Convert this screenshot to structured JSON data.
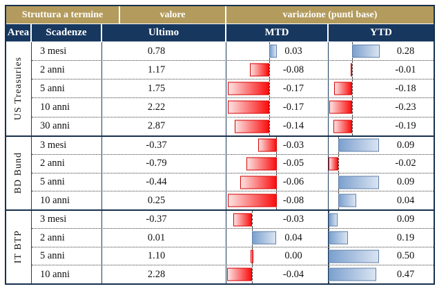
{
  "header": {
    "group_row": [
      "Struttura a termine",
      "valore",
      "variazione (punti base)"
    ],
    "columns": [
      "Area",
      "Scadenze",
      "Ultimo",
      "MTD",
      "YTD"
    ]
  },
  "colors": {
    "header_gold": "#B39B5D",
    "header_navy": "#17375E",
    "grid_line": "#16304d",
    "bar_negative_red": "#FA0E0E",
    "bar_negative_red_light": "#FCE3E3",
    "bar_negative_border": "#D40000",
    "bar_positive_blue": "#7BA0CE",
    "bar_positive_blue_light": "#DAE4F2",
    "bar_positive_border": "#5F7FA8"
  },
  "groups": [
    {
      "area": "US Treasuries",
      "rows": [
        {
          "scadenza": "3 mesi",
          "ultimo": "0.78",
          "mtd": 0.03,
          "ytd": 0.28
        },
        {
          "scadenza": "2 anni",
          "ultimo": "1.17",
          "mtd": -0.08,
          "ytd": -0.01
        },
        {
          "scadenza": "5 anni",
          "ultimo": "1.75",
          "mtd": -0.17,
          "ytd": -0.18
        },
        {
          "scadenza": "10 anni",
          "ultimo": "2.22",
          "mtd": -0.17,
          "ytd": -0.23
        },
        {
          "scadenza": "30 anni",
          "ultimo": "2.87",
          "mtd": -0.14,
          "ytd": -0.19
        }
      ]
    },
    {
      "area": "BD Bund",
      "rows": [
        {
          "scadenza": "3 mesi",
          "ultimo": "-0.37",
          "mtd": -0.03,
          "ytd": 0.09
        },
        {
          "scadenza": "2 anni",
          "ultimo": "-0.79",
          "mtd": -0.05,
          "ytd": -0.02
        },
        {
          "scadenza": "5 anni",
          "ultimo": "-0.44",
          "mtd": -0.06,
          "ytd": 0.09
        },
        {
          "scadenza": "10 anni",
          "ultimo": "0.25",
          "mtd": -0.08,
          "ytd": 0.04
        }
      ]
    },
    {
      "area": "IT BTP",
      "rows": [
        {
          "scadenza": "3 mesi",
          "ultimo": "-0.37",
          "mtd": -0.03,
          "ytd": 0.09
        },
        {
          "scadenza": "2 anni",
          "ultimo": "0.01",
          "mtd": 0.04,
          "ytd": 0.19
        },
        {
          "scadenza": "5 anni",
          "ultimo": "1.10",
          "mtd": 0.0,
          "ytd": 0.5
        },
        {
          "scadenza": "10 anni",
          "ultimo": "2.28",
          "mtd": -0.04,
          "ytd": 0.47
        }
      ]
    }
  ],
  "chart_data": {
    "type": "table",
    "title": "Struttura a termine",
    "columns": [
      "Area",
      "Scadenze",
      "Ultimo (valore)",
      "MTD variazione (punti base)",
      "YTD variazione (punti base)"
    ],
    "rows": [
      [
        "US Treasuries",
        "3 mesi",
        0.78,
        0.03,
        0.28
      ],
      [
        "US Treasuries",
        "2 anni",
        1.17,
        -0.08,
        -0.01
      ],
      [
        "US Treasuries",
        "5 anni",
        1.75,
        -0.17,
        -0.18
      ],
      [
        "US Treasuries",
        "10 anni",
        2.22,
        -0.17,
        -0.23
      ],
      [
        "US Treasuries",
        "30 anni",
        2.87,
        -0.14,
        -0.19
      ],
      [
        "BD Bund",
        "3 mesi",
        -0.37,
        -0.03,
        0.09
      ],
      [
        "BD Bund",
        "2 anni",
        -0.79,
        -0.05,
        -0.02
      ],
      [
        "BD Bund",
        "5 anni",
        -0.44,
        -0.06,
        0.09
      ],
      [
        "BD Bund",
        "10 anni",
        0.25,
        -0.08,
        0.04
      ],
      [
        "IT BTP",
        "3 mesi",
        -0.37,
        -0.03,
        0.09
      ],
      [
        "IT BTP",
        "2 anni",
        0.01,
        0.04,
        0.19
      ],
      [
        "IT BTP",
        "5 anni",
        1.1,
        0.0,
        0.5
      ],
      [
        "IT BTP",
        "10 anni",
        2.28,
        -0.04,
        0.47
      ]
    ],
    "layout": {
      "bars": "per-group data bars, negative=red extending left, positive=blue extending right, dashed zero axis",
      "legend": "none",
      "grid": "dotted row separators within groups, solid lines between groups"
    }
  }
}
